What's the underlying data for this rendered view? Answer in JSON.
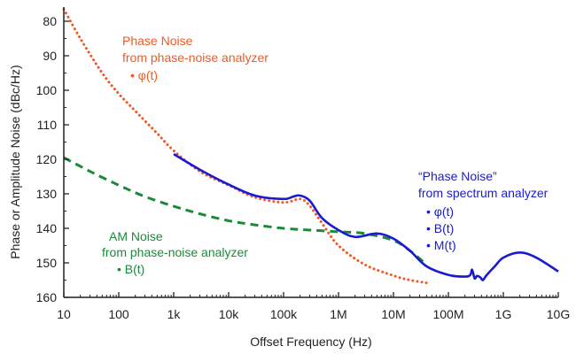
{
  "chart_data": {
    "type": "line",
    "title": "",
    "xlabel": "Offset Frequency (Hz)",
    "ylabel": "Phase or Amplitude Noise (dBc/Hz)",
    "xscale": "log",
    "xlim": [
      10,
      10000000000
    ],
    "ylim": [
      160,
      75
    ],
    "x_ticks": [
      10,
      100,
      1000,
      10000,
      100000,
      1000000,
      10000000,
      100000000,
      1000000000,
      10000000000
    ],
    "x_tick_labels": [
      "10",
      "100",
      "1k",
      "10k",
      "100k",
      "1M",
      "10M",
      "100M",
      "1G",
      "10G"
    ],
    "y_ticks": [
      80,
      90,
      100,
      110,
      120,
      130,
      140,
      150,
      160
    ],
    "y_tick_labels": [
      "80",
      "90",
      "100",
      "110",
      "120",
      "130",
      "140",
      "150",
      "160"
    ],
    "grid": false,
    "series": [
      {
        "key": "pn_analyzer",
        "color": "#f05a22",
        "style": "dotted",
        "x": [
          10,
          20,
          50,
          100,
          200,
          500,
          1000,
          3000,
          10000,
          30000,
          100000,
          200000,
          300000,
          500000,
          1000000,
          3000000,
          10000000,
          20000000,
          40000000
        ],
        "y": [
          76.5,
          85,
          95,
          101,
          106,
          112.5,
          117.5,
          123.5,
          127.5,
          131,
          132.5,
          131.5,
          133.5,
          138.5,
          145,
          150.5,
          153.7,
          155,
          155.8
        ]
      },
      {
        "key": "am_analyzer",
        "color": "#1a8a3a",
        "style": "dashed",
        "x": [
          10,
          30,
          100,
          300,
          1000,
          3000,
          10000,
          30000,
          100000,
          300000,
          1000000,
          3000000,
          10000000,
          20000000,
          40000000
        ],
        "y": [
          119.5,
          123.5,
          127.5,
          130.8,
          133.6,
          135.8,
          137.8,
          139,
          140,
          140.5,
          141,
          141.5,
          143.5,
          146.5,
          150.5
        ]
      },
      {
        "key": "spectrum_analyzer",
        "color": "#1a1ad0",
        "style": "solid",
        "x": [
          1000,
          3000,
          10000,
          30000,
          100000,
          150000,
          200000,
          300000,
          500000,
          1000000,
          2000000,
          5000000,
          10000000,
          20000000,
          40000000,
          100000000,
          200000000,
          250000000,
          270000000,
          300000000,
          330000000,
          380000000,
          420000000,
          460000000,
          500000000,
          700000000,
          1000000000,
          2000000000,
          4000000000,
          10000000000
        ],
        "y": [
          118.5,
          123,
          127.3,
          130.5,
          131.5,
          130.8,
          130.5,
          132,
          137,
          140.5,
          142.5,
          141.5,
          143,
          146.5,
          151,
          153.5,
          154,
          153.5,
          152,
          154.5,
          153.8,
          154.2,
          155,
          154.3,
          153.5,
          151,
          148.5,
          147,
          148.5,
          152.5
        ]
      }
    ]
  },
  "annotations": {
    "phase_noise": {
      "color": "#f05a22",
      "lines": [
        "Phase Noise",
        "from phase-noise analyzer"
      ],
      "bullets": [
        "• φ(t)"
      ]
    },
    "am_noise": {
      "color": "#1a8a3a",
      "lines": [
        "AM Noise",
        "from phase-noise analyzer"
      ],
      "bullets": [
        "• B(t)"
      ]
    },
    "spectrum_noise": {
      "color": "#1a1ad0",
      "lines": [
        "“Phase Noise”",
        "from spectrum analyzer"
      ],
      "bullets": [
        "• φ(t)",
        "• B(t)",
        "• M(t)"
      ]
    }
  }
}
